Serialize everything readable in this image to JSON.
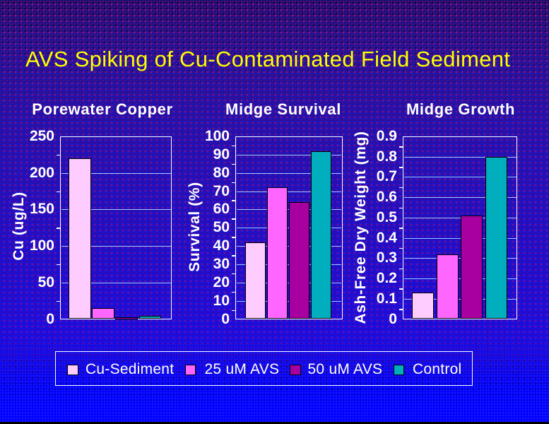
{
  "slide": {
    "title": "AVS Spiking of Cu-Contaminated Field Sediment",
    "title_color": "#ffff00",
    "background_top_color": "#2c0c68",
    "background_bottom_color": "#0101ff"
  },
  "legend": {
    "items": [
      {
        "label": "Cu-Sediment",
        "color": "#ffccff"
      },
      {
        "label": "25 uM AVS",
        "color": "#ff66ff"
      },
      {
        "label": "50 uM AVS",
        "color": "#a800a0"
      },
      {
        "label": "Control",
        "color": "#00aebe"
      }
    ]
  },
  "chart_data": [
    {
      "type": "bar",
      "title": "Porewater Copper",
      "xlabel": "",
      "ylabel": "Cu (ug/L)",
      "ylim": [
        0,
        250
      ],
      "ytick_step": 50,
      "ytick_labels": [
        "0",
        "50",
        "100",
        "150",
        "200",
        "250"
      ],
      "grid": true,
      "categories": [
        "Cu-Sediment",
        "25 uM AVS",
        "50 uM AVS",
        "Control"
      ],
      "values": [
        220,
        15,
        1.5,
        4
      ],
      "bar_colors": [
        "#ffccff",
        "#ff66ff",
        "#a800a0",
        "#00aebe"
      ]
    },
    {
      "type": "bar",
      "title": "Midge Survival",
      "xlabel": "",
      "ylabel": "Survival (%)",
      "ylim": [
        0,
        100
      ],
      "ytick_step": 10,
      "ytick_labels": [
        "0",
        "10",
        "20",
        "30",
        "40",
        "50",
        "60",
        "70",
        "80",
        "90",
        "100"
      ],
      "grid": true,
      "categories": [
        "Cu-Sediment",
        "25 uM AVS",
        "50 uM AVS",
        "Control"
      ],
      "values": [
        42,
        72,
        64,
        92
      ],
      "bar_colors": [
        "#ffccff",
        "#ff66ff",
        "#a800a0",
        "#00aebe"
      ]
    },
    {
      "type": "bar",
      "title": "Midge Growth",
      "xlabel": "",
      "ylabel": "Ash-Free Dry Weight (mg)",
      "ylim": [
        0,
        0.9
      ],
      "ytick_step": 0.1,
      "ytick_labels": [
        "0",
        "0.1",
        "0.2",
        "0.3",
        "0.4",
        "0.5",
        "0.6",
        "0.7",
        "0.8",
        "0.9"
      ],
      "grid": true,
      "categories": [
        "Cu-Sediment",
        "25 uM AVS",
        "50 uM AVS",
        "Control"
      ],
      "values": [
        0.13,
        0.32,
        0.51,
        0.8
      ],
      "bar_colors": [
        "#ffccff",
        "#ff66ff",
        "#a800a0",
        "#00aebe"
      ]
    }
  ]
}
